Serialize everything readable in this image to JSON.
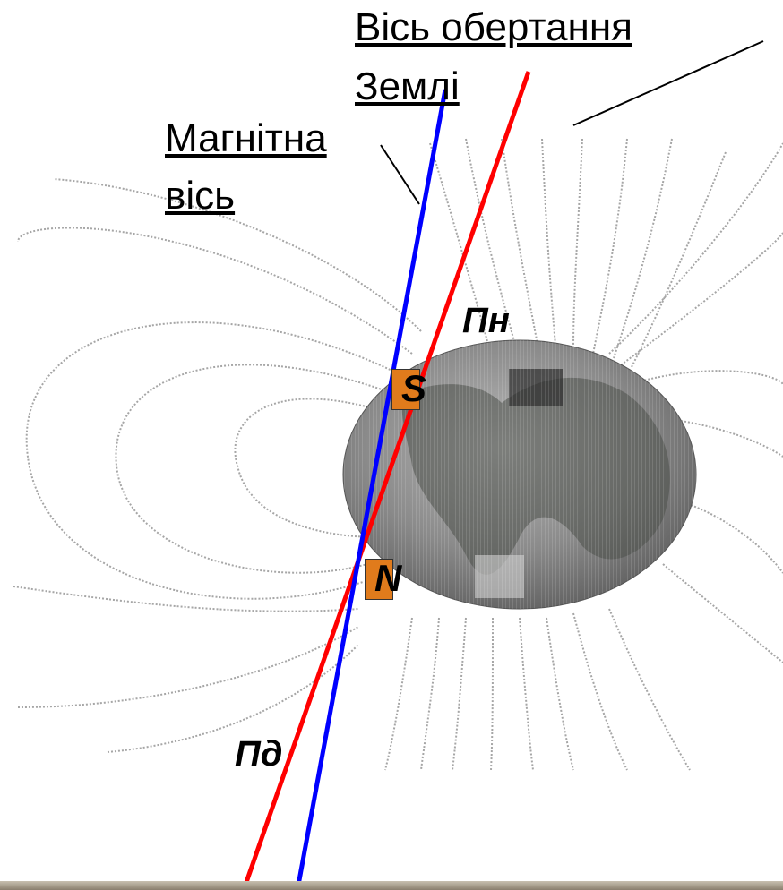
{
  "labels": {
    "earth_axis_line1": "Вісь обертання",
    "earth_axis_line2": "Землі",
    "magnetic_axis_line1": "Магнітна",
    "magnetic_axis_line2": "вісь",
    "geo_north": "Пн",
    "geo_south": "Пд",
    "mag_south": "S",
    "mag_north": "N"
  },
  "colors": {
    "earth_axis": "#ff0000",
    "magnetic_axis": "#0000ff",
    "magnet_pole_fill": "#e07b1c",
    "field_lines": "#9a9a9a",
    "globe": "#8c8c8c"
  }
}
